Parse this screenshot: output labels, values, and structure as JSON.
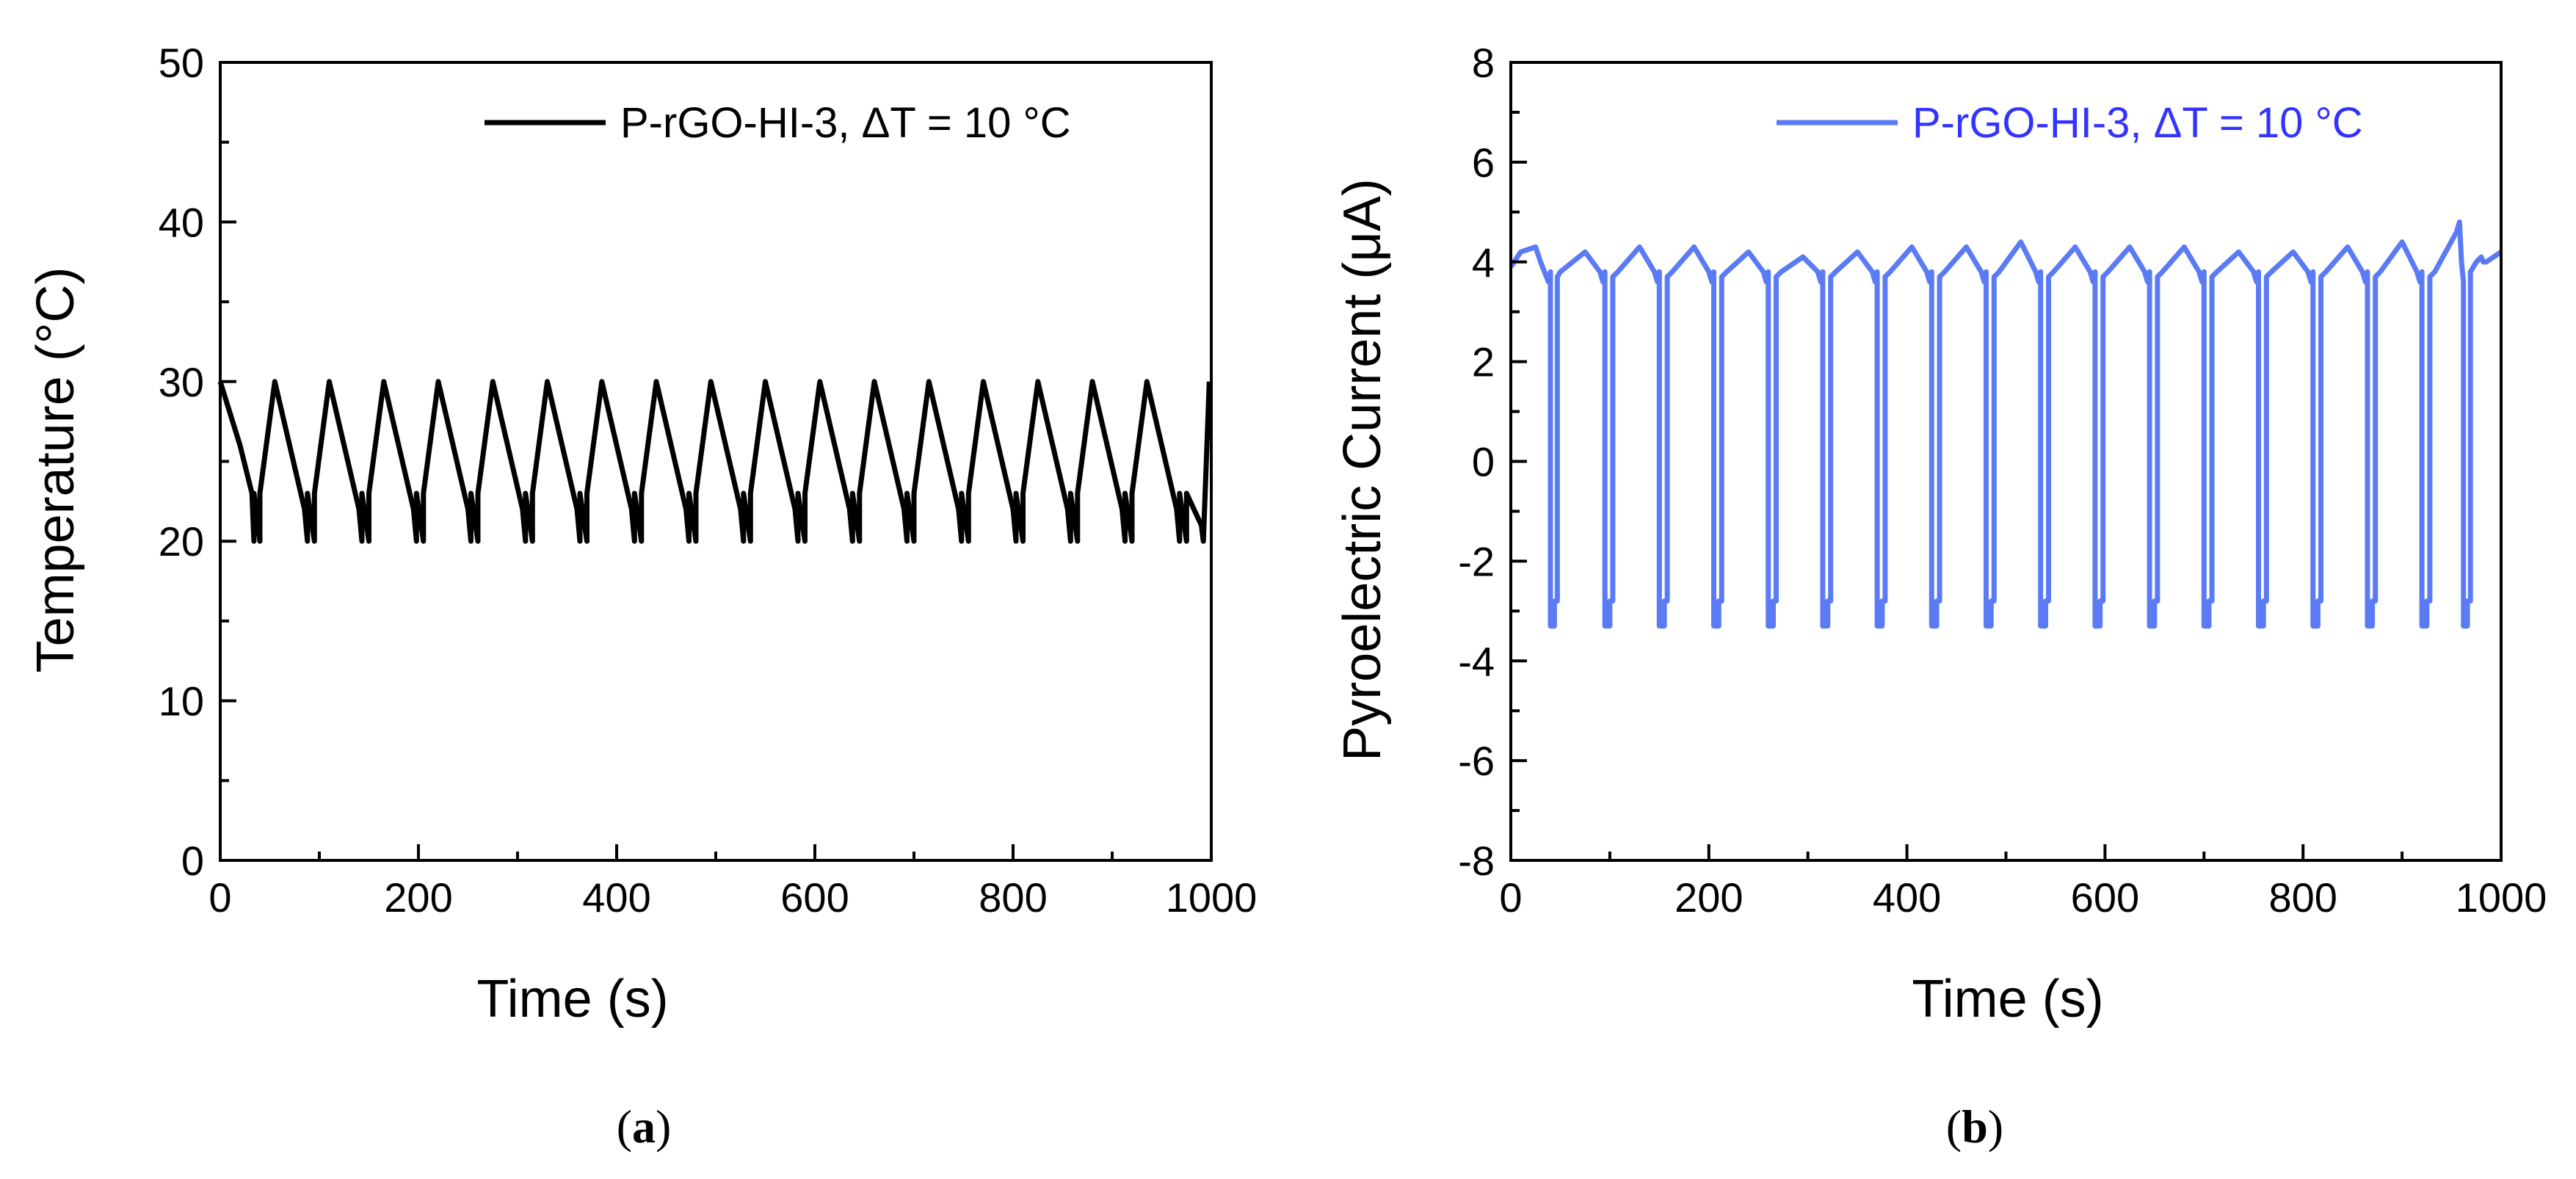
{
  "chart_data": [
    {
      "id": "a",
      "type": "line",
      "panel_label": "a",
      "title": "",
      "xlabel": "Time (s)",
      "ylabel": "Temperature (°C)",
      "xlim": [
        0,
        1000
      ],
      "ylim": [
        0,
        50
      ],
      "xticks": [
        "0",
        "200",
        "400",
        "600",
        "800",
        "1000"
      ],
      "yticks": [
        "0",
        "10",
        "20",
        "30",
        "40",
        "50"
      ],
      "grid": false,
      "legend_position": "top-right",
      "series": [
        {
          "name": "P-rGO-HI-3, ΔT = 10 °C",
          "color": "#000000",
          "x": [
            0,
            20,
            32,
            34,
            34,
            40,
            40,
            55,
            85,
            88,
            88,
            95,
            95,
            110,
            140,
            143,
            143,
            150,
            150,
            165,
            195,
            198,
            198,
            205,
            205,
            220,
            250,
            253,
            253,
            260,
            260,
            275,
            305,
            308,
            308,
            315,
            315,
            330,
            360,
            363,
            363,
            370,
            370,
            385,
            415,
            418,
            418,
            425,
            425,
            440,
            470,
            473,
            473,
            480,
            480,
            495,
            525,
            528,
            528,
            535,
            535,
            550,
            580,
            583,
            583,
            590,
            590,
            605,
            635,
            638,
            638,
            645,
            645,
            660,
            690,
            693,
            693,
            700,
            700,
            715,
            745,
            748,
            748,
            755,
            755,
            770,
            800,
            803,
            803,
            810,
            810,
            825,
            855,
            858,
            858,
            865,
            865,
            880,
            910,
            913,
            913,
            920,
            920,
            935,
            965,
            968,
            968,
            975,
            975,
            990,
            992,
            998
          ],
          "y": [
            30,
            26,
            23,
            20,
            23,
            20,
            23,
            30,
            22,
            20,
            23,
            20,
            23,
            30,
            22,
            20,
            23,
            20,
            23,
            30,
            22,
            20,
            23,
            20,
            23,
            30,
            22,
            20,
            23,
            20,
            23,
            30,
            22,
            20,
            23,
            20,
            23,
            30,
            22,
            20,
            23,
            20,
            23,
            30,
            22,
            20,
            23,
            20,
            23,
            30,
            22,
            20,
            23,
            20,
            23,
            30,
            22,
            20,
            23,
            20,
            23,
            30,
            22,
            20,
            23,
            20,
            23,
            30,
            22,
            20,
            23,
            20,
            23,
            30,
            22,
            20,
            23,
            20,
            23,
            30,
            22,
            20,
            23,
            20,
            23,
            30,
            22,
            20,
            23,
            20,
            23,
            30,
            22,
            20,
            23,
            20,
            23,
            30,
            22,
            20,
            23,
            20,
            23,
            30,
            22,
            20,
            23,
            20,
            23,
            21,
            20,
            30
          ]
        }
      ]
    },
    {
      "id": "b",
      "type": "line",
      "panel_label": "b",
      "title": "",
      "xlabel": "Time (s)",
      "ylabel": "Pyroelectric Current (μA)",
      "xlim": [
        0,
        1000
      ],
      "ylim": [
        -8,
        8
      ],
      "xticks": [
        "0",
        "200",
        "400",
        "600",
        "800",
        "1000"
      ],
      "yticks": [
        "-8",
        "-6",
        "-4",
        "-2",
        "0",
        "2",
        "4",
        "6",
        "8"
      ],
      "grid": false,
      "legend_position": "top-right",
      "series": [
        {
          "name": "P-rGO-HI-3, ΔT = 10 °C",
          "color": "#5B7BF5",
          "x": [
            0,
            10,
            25,
            30,
            38,
            40,
            40,
            44,
            44,
            47,
            47,
            50,
            75,
            90,
            93,
            95,
            95,
            100,
            100,
            103,
            103,
            108,
            130,
            145,
            148,
            150,
            150,
            155,
            155,
            158,
            158,
            163,
            185,
            200,
            203,
            205,
            205,
            210,
            210,
            213,
            213,
            218,
            240,
            255,
            258,
            260,
            260,
            265,
            265,
            268,
            268,
            273,
            295,
            310,
            313,
            315,
            315,
            320,
            320,
            323,
            323,
            328,
            350,
            365,
            368,
            370,
            370,
            375,
            375,
            378,
            378,
            383,
            405,
            420,
            423,
            425,
            425,
            430,
            430,
            433,
            433,
            438,
            460,
            475,
            478,
            480,
            480,
            485,
            485,
            488,
            488,
            493,
            515,
            530,
            533,
            535,
            535,
            540,
            540,
            543,
            543,
            548,
            570,
            585,
            588,
            590,
            590,
            595,
            595,
            598,
            598,
            603,
            625,
            640,
            643,
            645,
            645,
            650,
            650,
            653,
            653,
            658,
            680,
            695,
            698,
            700,
            700,
            705,
            705,
            708,
            708,
            713,
            735,
            750,
            753,
            755,
            755,
            760,
            760,
            763,
            763,
            768,
            790,
            805,
            808,
            810,
            810,
            815,
            815,
            818,
            818,
            823,
            845,
            860,
            863,
            865,
            865,
            870,
            870,
            873,
            873,
            878,
            900,
            915,
            918,
            920,
            920,
            925,
            925,
            928,
            928,
            933,
            955,
            958,
            960,
            962,
            962,
            966,
            966,
            969,
            969,
            975,
            980,
            982,
            985,
            1000
          ],
          "y": [
            3.9,
            4.2,
            4.3,
            4.0,
            3.6,
            3.8,
            -3.3,
            -3.3,
            -2.8,
            -2.8,
            3.7,
            3.8,
            4.2,
            3.8,
            3.6,
            3.8,
            -3.3,
            -3.3,
            -2.8,
            -2.8,
            3.7,
            3.8,
            4.3,
            3.8,
            3.6,
            3.8,
            -3.3,
            -3.3,
            -2.8,
            -2.8,
            3.7,
            3.8,
            4.3,
            3.8,
            3.6,
            3.8,
            -3.3,
            -3.3,
            -2.8,
            -2.8,
            3.7,
            3.8,
            4.2,
            3.8,
            3.6,
            3.8,
            -3.3,
            -3.3,
            -2.8,
            -2.8,
            3.7,
            3.8,
            4.1,
            3.8,
            3.6,
            3.8,
            -3.3,
            -3.3,
            -2.8,
            -2.8,
            3.7,
            3.8,
            4.2,
            3.8,
            3.6,
            3.8,
            -3.3,
            -3.3,
            -2.8,
            -2.8,
            3.7,
            3.8,
            4.3,
            3.8,
            3.6,
            3.8,
            -3.3,
            -3.3,
            -2.8,
            -2.8,
            3.7,
            3.8,
            4.3,
            3.8,
            3.6,
            3.8,
            -3.3,
            -3.3,
            -2.8,
            -2.8,
            3.7,
            3.8,
            4.4,
            3.8,
            3.6,
            3.8,
            -3.3,
            -3.3,
            -2.8,
            -2.8,
            3.7,
            3.8,
            4.3,
            3.8,
            3.6,
            3.8,
            -3.3,
            -3.3,
            -2.8,
            -2.8,
            3.7,
            3.8,
            4.3,
            3.8,
            3.6,
            3.8,
            -3.3,
            -3.3,
            -2.8,
            -2.8,
            3.7,
            3.8,
            4.3,
            3.8,
            3.6,
            3.8,
            -3.3,
            -3.3,
            -2.8,
            -2.8,
            3.7,
            3.8,
            4.2,
            3.8,
            3.6,
            3.8,
            -3.3,
            -3.3,
            -2.8,
            -2.8,
            3.7,
            3.8,
            4.2,
            3.8,
            3.6,
            3.8,
            -3.3,
            -3.3,
            -2.8,
            -2.8,
            3.7,
            3.8,
            4.3,
            3.8,
            3.6,
            3.8,
            -3.3,
            -3.3,
            -2.8,
            -2.8,
            3.7,
            3.8,
            4.4,
            3.8,
            3.6,
            3.8,
            -3.3,
            -3.3,
            -2.8,
            -2.8,
            3.7,
            3.8,
            4.6,
            4.8,
            4.0,
            3.6,
            -3.3,
            -3.3,
            -2.8,
            -2.8,
            3.8,
            4.0,
            4.1,
            4.0,
            4.0,
            4.2
          ]
        }
      ]
    }
  ]
}
